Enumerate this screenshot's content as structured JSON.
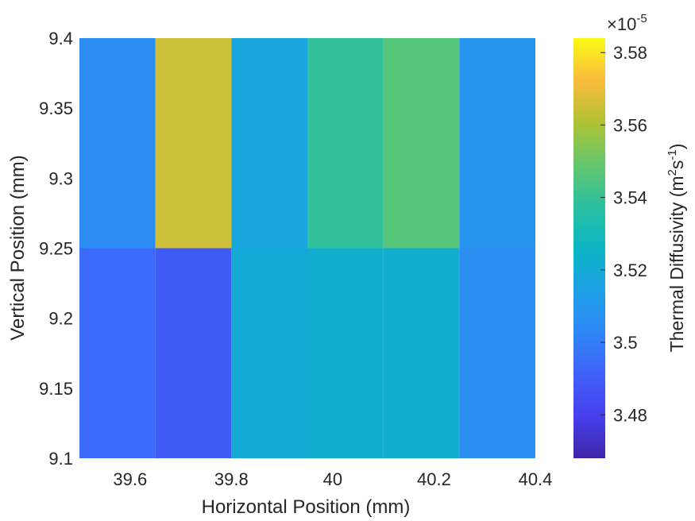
{
  "chart_data": {
    "type": "heatmap",
    "x": [
      39.575,
      39.725,
      39.875,
      40.025,
      40.175,
      40.325
    ],
    "y": [
      9.175,
      9.325
    ],
    "values": [
      [
        3.494,
        3.489,
        3.52,
        3.522,
        3.522,
        3.506
      ],
      [
        3.505,
        3.565,
        3.517,
        3.539,
        3.546,
        3.509
      ]
    ],
    "value_scale_label": "×10",
    "value_scale_exponent": "-5",
    "xlim": [
      39.5,
      40.4
    ],
    "ylim": [
      9.1,
      9.4
    ],
    "xticks": [
      "39.6",
      "39.8",
      "40",
      "40.2",
      "40.4"
    ],
    "xtick_values": [
      39.6,
      39.8,
      40.0,
      40.2,
      40.4
    ],
    "yticks": [
      "9.1",
      "9.15",
      "9.2",
      "9.25",
      "9.3",
      "9.35",
      "9.4"
    ],
    "ytick_values": [
      9.1,
      9.15,
      9.2,
      9.25,
      9.3,
      9.35,
      9.4
    ],
    "xlabel": "Horizontal Position (mm)",
    "ylabel": "Vertical Position (mm)",
    "colorbar": {
      "label_main": "Thermal Diffusivity (m",
      "label_sup1": "2",
      "label_mid": "s",
      "label_sup2": "-1",
      "label_end": ")",
      "limits": [
        3.468,
        3.584
      ],
      "ticks": [
        "3.48",
        "3.5",
        "3.52",
        "3.54",
        "3.56",
        "3.58"
      ],
      "tick_values": [
        3.48,
        3.5,
        3.52,
        3.54,
        3.56,
        3.58
      ],
      "colormap": "parula"
    },
    "grid": false
  }
}
